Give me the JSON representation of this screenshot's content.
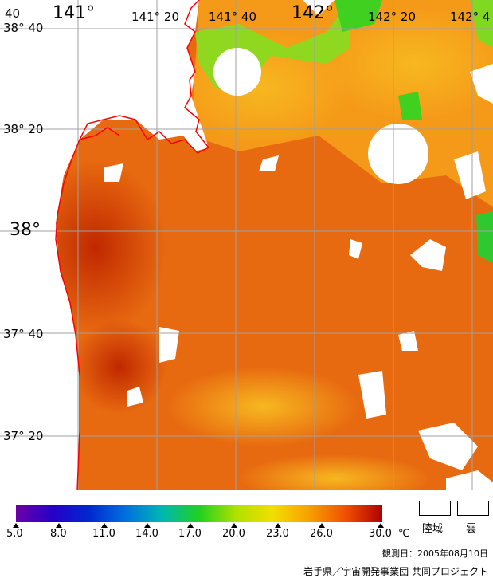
{
  "map": {
    "top_labels": [
      "40",
      "141°",
      "141° 20",
      "141° 40",
      "142°",
      "142° 20",
      "142° 4"
    ],
    "left_labels": [
      "38° 40",
      "38° 20",
      "38°",
      "37° 40",
      "37° 20"
    ]
  },
  "scale": {
    "ticks": [
      "5.0",
      "8.0",
      "11.0",
      "14.0",
      "17.0",
      "20.0",
      "23.0",
      "26.0",
      "30.0"
    ],
    "unit": "℃"
  },
  "legend": {
    "land": "陸域",
    "cloud": "雲"
  },
  "observation": "観測日：2005年08月10日",
  "credit": "岩手県／宇宙開発事業団 共同プロジェクト",
  "colors": {
    "sea_warm": "#e06010",
    "sea_hot": "#c83000",
    "sea_mid": "#f08a10",
    "sea_cool": "#f8c020",
    "green": "#40d020",
    "coast": "#ff0000",
    "grid": "#a0a0a0"
  }
}
